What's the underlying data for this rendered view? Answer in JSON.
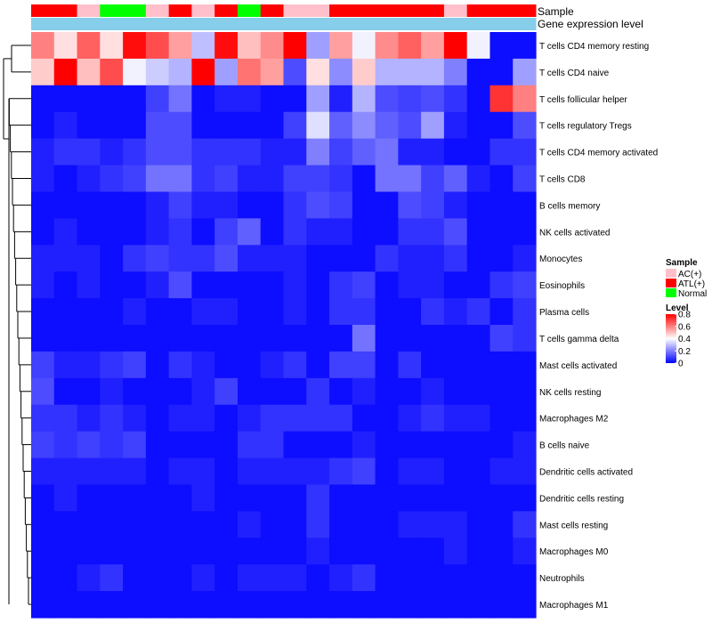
{
  "chart_data": {
    "type": "heatmap",
    "annotation_labels": [
      "Sample",
      "Gene expression level"
    ],
    "sample_groups": [
      "ATL(+)",
      "ATL(+)",
      "AC(+)",
      "Normal",
      "Normal",
      "AC(+)",
      "ATL(+)",
      "AC(+)",
      "ATL(+)",
      "Normal",
      "ATL(+)",
      "AC(+)",
      "AC(+)",
      "ATL(+)",
      "ATL(+)",
      "ATL(+)",
      "ATL(+)",
      "ATL(+)",
      "AC(+)",
      "ATL(+)",
      "ATL(+)",
      "ATL(+)"
    ],
    "gene_expression_level": [
      0.15,
      0.15,
      0.15,
      0.15,
      0.15,
      0.15,
      0.15,
      0.15,
      0.15,
      0.15,
      0.15,
      0.15,
      0.15,
      0.15,
      0.15,
      0.15,
      0.15,
      0.15,
      0.15,
      0.15,
      0.15,
      0.15
    ],
    "rows": [
      "T cells CD4 memory resting",
      "T cells CD4 naive",
      "T cells follicular helper",
      "T cells regulatory  Tregs",
      "T cells CD4 memory activated",
      "T cells CD8",
      "B cells memory",
      "NK cells activated",
      "Monocytes",
      "Eosinophils",
      "Plasma cells",
      "T cells gamma delta",
      "Mast cells activated",
      "NK cells resting",
      "Macrophages M2",
      "B cells naive",
      "Dendritic cells activated",
      "Dendritic cells resting",
      "Mast cells resting",
      "Macrophages M0",
      "Neutrophils",
      "Macrophages M1"
    ],
    "values": [
      [
        0.6,
        0.45,
        0.65,
        0.45,
        0.78,
        0.68,
        0.55,
        0.3,
        0.78,
        0.5,
        0.58,
        0.8,
        0.25,
        0.55,
        0.38,
        0.58,
        0.65,
        0.55,
        0.8,
        0.38,
        0.02,
        0.02
      ],
      [
        0.48,
        0.8,
        0.5,
        0.68,
        0.38,
        0.32,
        0.28,
        0.8,
        0.25,
        0.62,
        0.55,
        0.12,
        0.45,
        0.22,
        0.48,
        0.28,
        0.28,
        0.28,
        0.2,
        0.02,
        0.02,
        0.25
      ],
      [
        0.02,
        0.02,
        0.02,
        0.02,
        0.02,
        0.1,
        0.18,
        0.02,
        0.05,
        0.05,
        0.02,
        0.02,
        0.25,
        0.05,
        0.28,
        0.12,
        0.1,
        0.12,
        0.08,
        0.02,
        0.72,
        0.6
      ],
      [
        0.02,
        0.05,
        0.02,
        0.02,
        0.02,
        0.12,
        0.12,
        0.02,
        0.02,
        0.02,
        0.02,
        0.1,
        0.35,
        0.15,
        0.22,
        0.15,
        0.12,
        0.25,
        0.05,
        0.02,
        0.02,
        0.12
      ],
      [
        0.05,
        0.08,
        0.08,
        0.05,
        0.08,
        0.12,
        0.12,
        0.08,
        0.08,
        0.08,
        0.05,
        0.05,
        0.2,
        0.1,
        0.15,
        0.18,
        0.05,
        0.05,
        0.02,
        0.02,
        0.08,
        0.08
      ],
      [
        0.05,
        0.02,
        0.05,
        0.08,
        0.1,
        0.18,
        0.18,
        0.08,
        0.1,
        0.05,
        0.05,
        0.1,
        0.1,
        0.08,
        0.02,
        0.18,
        0.18,
        0.1,
        0.15,
        0.05,
        0.02,
        0.1
      ],
      [
        0.02,
        0.02,
        0.02,
        0.02,
        0.02,
        0.05,
        0.1,
        0.05,
        0.05,
        0.02,
        0.02,
        0.08,
        0.12,
        0.1,
        0.02,
        0.02,
        0.12,
        0.1,
        0.05,
        0.02,
        0.02,
        0.02
      ],
      [
        0.02,
        0.05,
        0.02,
        0.02,
        0.02,
        0.05,
        0.08,
        0.02,
        0.1,
        0.15,
        0.02,
        0.08,
        0.05,
        0.05,
        0.02,
        0.02,
        0.08,
        0.08,
        0.12,
        0.02,
        0.02,
        0.02
      ],
      [
        0.05,
        0.05,
        0.05,
        0.02,
        0.08,
        0.1,
        0.08,
        0.08,
        0.12,
        0.05,
        0.05,
        0.05,
        0.02,
        0.02,
        0.02,
        0.08,
        0.05,
        0.05,
        0.08,
        0.02,
        0.02,
        0.05
      ],
      [
        0.05,
        0.02,
        0.05,
        0.02,
        0.02,
        0.05,
        0.12,
        0.02,
        0.02,
        0.02,
        0.02,
        0.05,
        0.02,
        0.08,
        0.1,
        0.02,
        0.05,
        0.05,
        0.02,
        0.02,
        0.08,
        0.1
      ],
      [
        0.02,
        0.02,
        0.02,
        0.02,
        0.05,
        0.02,
        0.02,
        0.05,
        0.05,
        0.02,
        0.02,
        0.05,
        0.02,
        0.08,
        0.08,
        0.02,
        0.02,
        0.08,
        0.05,
        0.08,
        0.02,
        0.08
      ],
      [
        0.02,
        0.02,
        0.02,
        0.02,
        0.02,
        0.02,
        0.02,
        0.02,
        0.02,
        0.02,
        0.02,
        0.02,
        0.02,
        0.02,
        0.18,
        0.02,
        0.02,
        0.02,
        0.02,
        0.02,
        0.1,
        0.08
      ],
      [
        0.1,
        0.05,
        0.05,
        0.08,
        0.1,
        0.02,
        0.08,
        0.05,
        0.02,
        0.02,
        0.05,
        0.08,
        0.02,
        0.1,
        0.1,
        0.02,
        0.08,
        0.02,
        0.02,
        0.02,
        0.02,
        0.02
      ],
      [
        0.12,
        0.02,
        0.02,
        0.05,
        0.02,
        0.02,
        0.02,
        0.05,
        0.1,
        0.02,
        0.02,
        0.02,
        0.08,
        0.02,
        0.05,
        0.02,
        0.02,
        0.05,
        0.02,
        0.02,
        0.02,
        0.02
      ],
      [
        0.08,
        0.08,
        0.05,
        0.08,
        0.05,
        0.02,
        0.05,
        0.05,
        0.02,
        0.05,
        0.08,
        0.08,
        0.08,
        0.08,
        0.02,
        0.02,
        0.05,
        0.08,
        0.05,
        0.05,
        0.02,
        0.02
      ],
      [
        0.1,
        0.08,
        0.1,
        0.08,
        0.1,
        0.02,
        0.02,
        0.02,
        0.02,
        0.08,
        0.08,
        0.02,
        0.02,
        0.02,
        0.05,
        0.02,
        0.02,
        0.02,
        0.02,
        0.02,
        0.02,
        0.05
      ],
      [
        0.05,
        0.05,
        0.05,
        0.05,
        0.05,
        0.02,
        0.05,
        0.05,
        0.02,
        0.05,
        0.05,
        0.05,
        0.05,
        0.08,
        0.1,
        0.02,
        0.05,
        0.05,
        0.02,
        0.02,
        0.05,
        0.05
      ],
      [
        0.02,
        0.05,
        0.02,
        0.02,
        0.02,
        0.02,
        0.02,
        0.05,
        0.02,
        0.02,
        0.02,
        0.02,
        0.08,
        0.02,
        0.02,
        0.02,
        0.02,
        0.02,
        0.02,
        0.02,
        0.02,
        0.02
      ],
      [
        0.02,
        0.02,
        0.02,
        0.02,
        0.02,
        0.02,
        0.02,
        0.02,
        0.02,
        0.05,
        0.02,
        0.02,
        0.08,
        0.02,
        0.02,
        0.02,
        0.05,
        0.05,
        0.05,
        0.02,
        0.02,
        0.08
      ],
      [
        0.02,
        0.02,
        0.02,
        0.02,
        0.02,
        0.02,
        0.02,
        0.02,
        0.02,
        0.02,
        0.02,
        0.02,
        0.05,
        0.02,
        0.02,
        0.02,
        0.02,
        0.02,
        0.05,
        0.02,
        0.02,
        0.05
      ],
      [
        0.02,
        0.02,
        0.05,
        0.08,
        0.02,
        0.02,
        0.02,
        0.05,
        0.02,
        0.05,
        0.05,
        0.05,
        0.02,
        0.05,
        0.08,
        0.02,
        0.02,
        0.02,
        0.02,
        0.02,
        0.02,
        0.02
      ],
      [
        0.02,
        0.02,
        0.02,
        0.02,
        0.02,
        0.02,
        0.02,
        0.02,
        0.02,
        0.02,
        0.02,
        0.02,
        0.02,
        0.02,
        0.02,
        0.02,
        0.02,
        0.02,
        0.02,
        0.02,
        0.02,
        0.02
      ]
    ],
    "color_scale": {
      "low": "#0000ff",
      "mid": "#ffffff",
      "high": "#ff0000",
      "range": [
        0,
        0.8
      ]
    },
    "legend": {
      "sample_title": "Sample",
      "sample_entries": [
        {
          "label": "AC(+)",
          "color": "#ffc0cb"
        },
        {
          "label": "ATL(+)",
          "color": "#ff0000"
        },
        {
          "label": "Normal",
          "color": "#00ff00"
        }
      ],
      "level_title": "Level",
      "level_ticks": [
        "0.8",
        "0.6",
        "0.4",
        "0.2",
        "0"
      ],
      "level_tick_values": [
        0.8,
        0.6,
        0.4,
        0.2,
        0
      ],
      "expression_color": "#87ceeb"
    }
  }
}
